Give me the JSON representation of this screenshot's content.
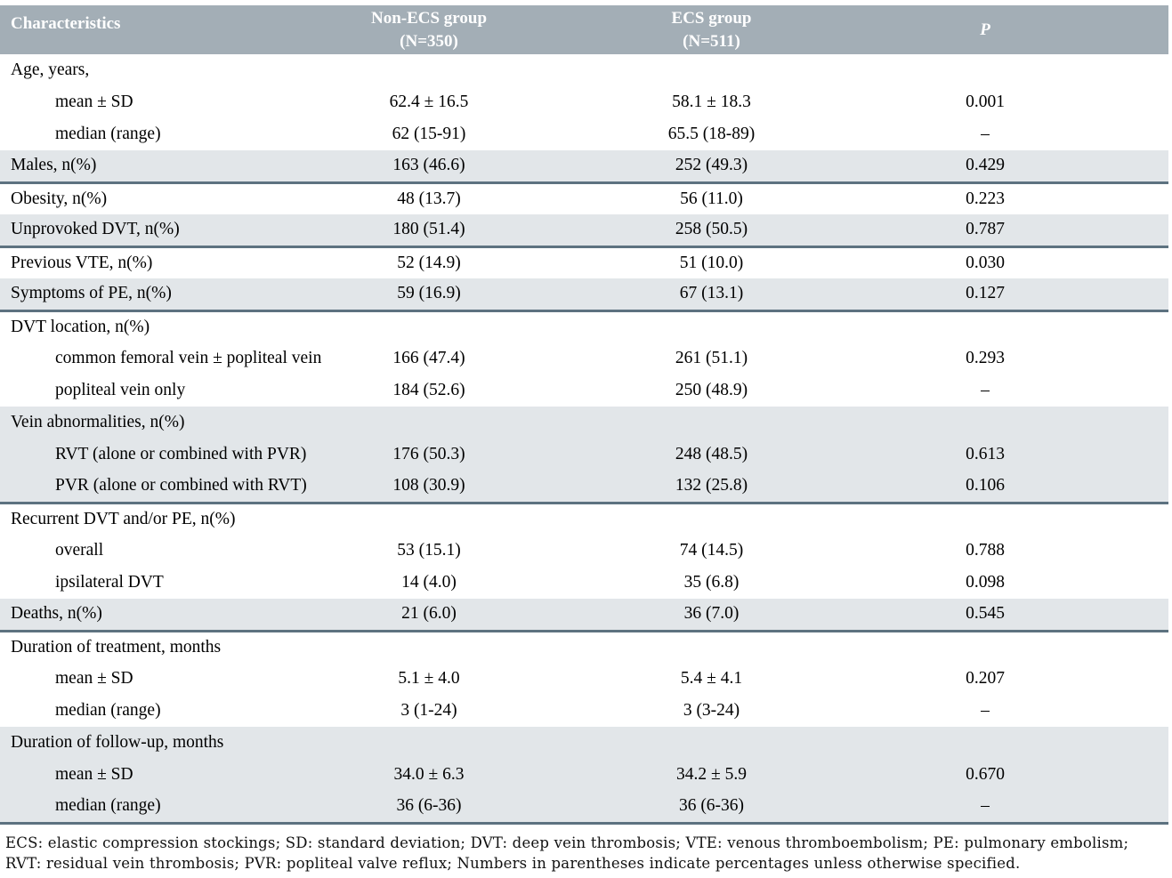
{
  "colors": {
    "header_bg": "#a3aeb6",
    "header_text": "#ffffff",
    "shaded_row_bg": "#e2e6e9",
    "separator_line": "#5d7280",
    "body_text": "#000000"
  },
  "header": {
    "characteristics": "Characteristics",
    "group1_line1": "Non-ECS group",
    "group1_line2": "(N=350)",
    "group2_line1": "ECS group",
    "group2_line2": "(N=511)",
    "p": "P"
  },
  "table": {
    "rows": [
      {
        "label": "Age, years,",
        "indent": false,
        "non_ecs": "",
        "ecs": "",
        "p": "",
        "shaded": false,
        "separator_below": false
      },
      {
        "label": "mean ± SD",
        "indent": true,
        "non_ecs": "62.4 ± 16.5",
        "ecs": "58.1 ± 18.3",
        "p": "0.001",
        "shaded": false,
        "separator_below": false
      },
      {
        "label": "median (range)",
        "indent": true,
        "non_ecs": "62 (15-91)",
        "ecs": "65.5 (18-89)",
        "p": "–",
        "shaded": false,
        "separator_below": false
      },
      {
        "label": "Males, n(%)",
        "indent": false,
        "non_ecs": "163 (46.6)",
        "ecs": "252 (49.3)",
        "p": "0.429",
        "shaded": true,
        "separator_below": true
      },
      {
        "label": "Obesity, n(%)",
        "indent": false,
        "non_ecs": "48 (13.7)",
        "ecs": "56 (11.0)",
        "p": "0.223",
        "shaded": false,
        "separator_below": false
      },
      {
        "label": "Unprovoked DVT, n(%)",
        "indent": false,
        "non_ecs": "180 (51.4)",
        "ecs": "258 (50.5)",
        "p": "0.787",
        "shaded": true,
        "separator_below": true
      },
      {
        "label": "Previous VTE, n(%)",
        "indent": false,
        "non_ecs": "52 (14.9)",
        "ecs": "51 (10.0)",
        "p": "0.030",
        "shaded": false,
        "separator_below": false
      },
      {
        "label": "Symptoms of PE, n(%)",
        "indent": false,
        "non_ecs": "59 (16.9)",
        "ecs": "67 (13.1)",
        "p": "0.127",
        "shaded": true,
        "separator_below": true
      },
      {
        "label": "DVT location, n(%)",
        "indent": false,
        "non_ecs": "",
        "ecs": "",
        "p": "",
        "shaded": false,
        "separator_below": false
      },
      {
        "label": "common femoral vein ± popliteal vein",
        "indent": true,
        "non_ecs": "166 (47.4)",
        "ecs": "261 (51.1)",
        "p": "0.293",
        "shaded": false,
        "separator_below": false
      },
      {
        "label": "popliteal vein only",
        "indent": true,
        "non_ecs": "184 (52.6)",
        "ecs": "250 (48.9)",
        "p": "–",
        "shaded": false,
        "separator_below": false
      },
      {
        "label": "Vein abnormalities, n(%)",
        "indent": false,
        "non_ecs": "",
        "ecs": "",
        "p": "",
        "shaded": true,
        "separator_below": false
      },
      {
        "label": "RVT (alone or combined with PVR)",
        "indent": true,
        "non_ecs": "176 (50.3)",
        "ecs": "248 (48.5)",
        "p": "0.613",
        "shaded": true,
        "separator_below": false
      },
      {
        "label": "PVR (alone or combined with RVT)",
        "indent": true,
        "non_ecs": "108 (30.9)",
        "ecs": "132 (25.8)",
        "p": "0.106",
        "shaded": true,
        "separator_below": true
      },
      {
        "label": "Recurrent DVT and/or PE, n(%)",
        "indent": false,
        "non_ecs": "",
        "ecs": "",
        "p": "",
        "shaded": false,
        "separator_below": false
      },
      {
        "label": "overall",
        "indent": true,
        "non_ecs": "53 (15.1)",
        "ecs": "74 (14.5)",
        "p": "0.788",
        "shaded": false,
        "separator_below": false
      },
      {
        "label": "ipsilateral DVT",
        "indent": true,
        "non_ecs": "14 (4.0)",
        "ecs": "35 (6.8)",
        "p": "0.098",
        "shaded": false,
        "separator_below": false
      },
      {
        "label": "Deaths, n(%)",
        "indent": false,
        "non_ecs": "21 (6.0)",
        "ecs": "36 (7.0)",
        "p": "0.545",
        "shaded": true,
        "separator_below": true
      },
      {
        "label": "Duration of treatment, months",
        "indent": false,
        "non_ecs": "",
        "ecs": "",
        "p": "",
        "shaded": false,
        "separator_below": false
      },
      {
        "label": "mean ± SD",
        "indent": true,
        "non_ecs": "5.1 ± 4.0",
        "ecs": "5.4 ± 4.1",
        "p": "0.207",
        "shaded": false,
        "separator_below": false
      },
      {
        "label": "median (range)",
        "indent": true,
        "non_ecs": "3 (1-24)",
        "ecs": "3 (3-24)",
        "p": "–",
        "shaded": false,
        "separator_below": false
      },
      {
        "label": "Duration of follow-up, months",
        "indent": false,
        "non_ecs": "",
        "ecs": "",
        "p": "",
        "shaded": true,
        "separator_below": false
      },
      {
        "label": "mean ± SD",
        "indent": true,
        "non_ecs": "34.0 ± 6.3",
        "ecs": "34.2 ± 5.9",
        "p": "0.670",
        "shaded": true,
        "separator_below": false
      },
      {
        "label": "median (range)",
        "indent": true,
        "non_ecs": "36 (6-36)",
        "ecs": "36 (6-36)",
        "p": "–",
        "shaded": true,
        "separator_below": true
      }
    ]
  },
  "footnote": "ECS: elastic compression stockings; SD: standard deviation; DVT: deep vein thrombosis; VTE: venous thromboembolism; PE: pulmonary embolism; RVT: residual vein thrombosis; PVR: popliteal valve reflux; Numbers in parentheses indicate percentages unless otherwise specified."
}
